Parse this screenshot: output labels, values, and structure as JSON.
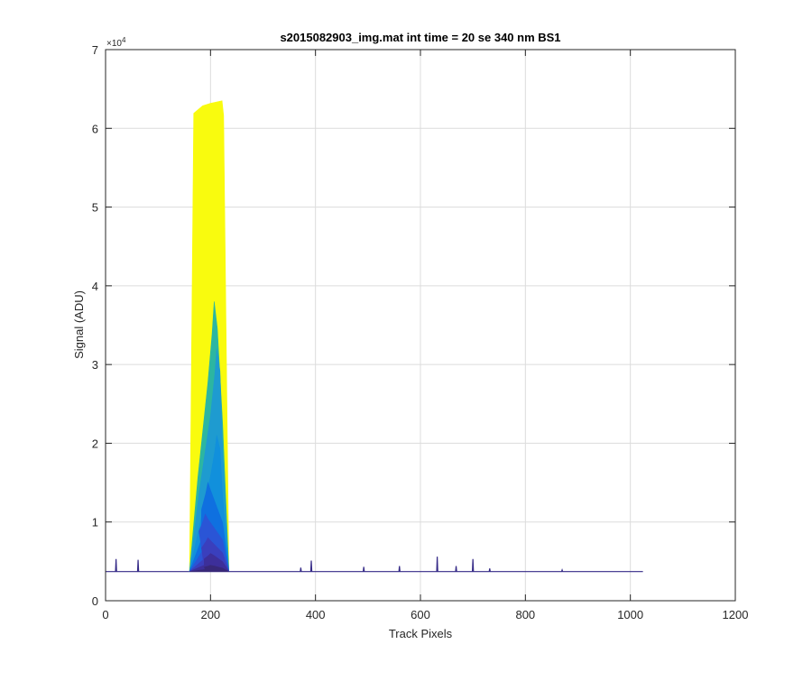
{
  "chart_data": {
    "type": "area",
    "title": "s2015082903_img.mat int time = 20 se  340 nm BS1",
    "xlabel": "Track Pixels",
    "ylabel": "Signal (ADU)",
    "y_multiplier_label": "×10",
    "y_multiplier_exponent": "4",
    "xlim": [
      0,
      1200
    ],
    "ylim": [
      0,
      70000
    ],
    "x_ticks": [
      0,
      200,
      400,
      600,
      800,
      1000,
      1200
    ],
    "x_tick_labels": [
      "0",
      "200",
      "400",
      "600",
      "800",
      "1000",
      "1200"
    ],
    "y_ticks": [
      0,
      10000,
      20000,
      30000,
      40000,
      50000,
      60000,
      70000
    ],
    "y_tick_labels": [
      "0",
      "1",
      "2",
      "3",
      "4",
      "5",
      "6",
      "7"
    ],
    "grid": true,
    "baseline": {
      "x_start": 0,
      "x_end": 1024,
      "value": 3700
    },
    "spikes": [
      {
        "x": 20,
        "y": 5300
      },
      {
        "x": 62,
        "y": 5200
      },
      {
        "x": 372,
        "y": 4200
      },
      {
        "x": 392,
        "y": 5100
      },
      {
        "x": 492,
        "y": 4300
      },
      {
        "x": 560,
        "y": 4400
      },
      {
        "x": 632,
        "y": 5600
      },
      {
        "x": 668,
        "y": 4400
      },
      {
        "x": 700,
        "y": 5300
      },
      {
        "x": 732,
        "y": 4100
      },
      {
        "x": 870,
        "y": 3900
      }
    ],
    "series": [
      {
        "peak_x": 200,
        "peak": 63500,
        "color": "#f9fb0e"
      },
      {
        "peak_x": 207,
        "peak": 38000,
        "color": "#2cb6a1"
      },
      {
        "peak_x": 212,
        "peak": 32000,
        "color": "#1e9bd0"
      },
      {
        "peak_x": 212,
        "peak": 21000,
        "color": "#1190dc"
      },
      {
        "peak_x": 195,
        "peak": 15000,
        "color": "#0f70e0"
      },
      {
        "peak_x": 190,
        "peak": 11000,
        "color": "#2a55d6"
      },
      {
        "peak_x": 195,
        "peak": 8000,
        "color": "#3a3fbd"
      },
      {
        "peak_x": 200,
        "peak": 6000,
        "color": "#3d2f9a"
      },
      {
        "peak_x": 200,
        "peak": 4500,
        "color": "#382878"
      }
    ]
  }
}
